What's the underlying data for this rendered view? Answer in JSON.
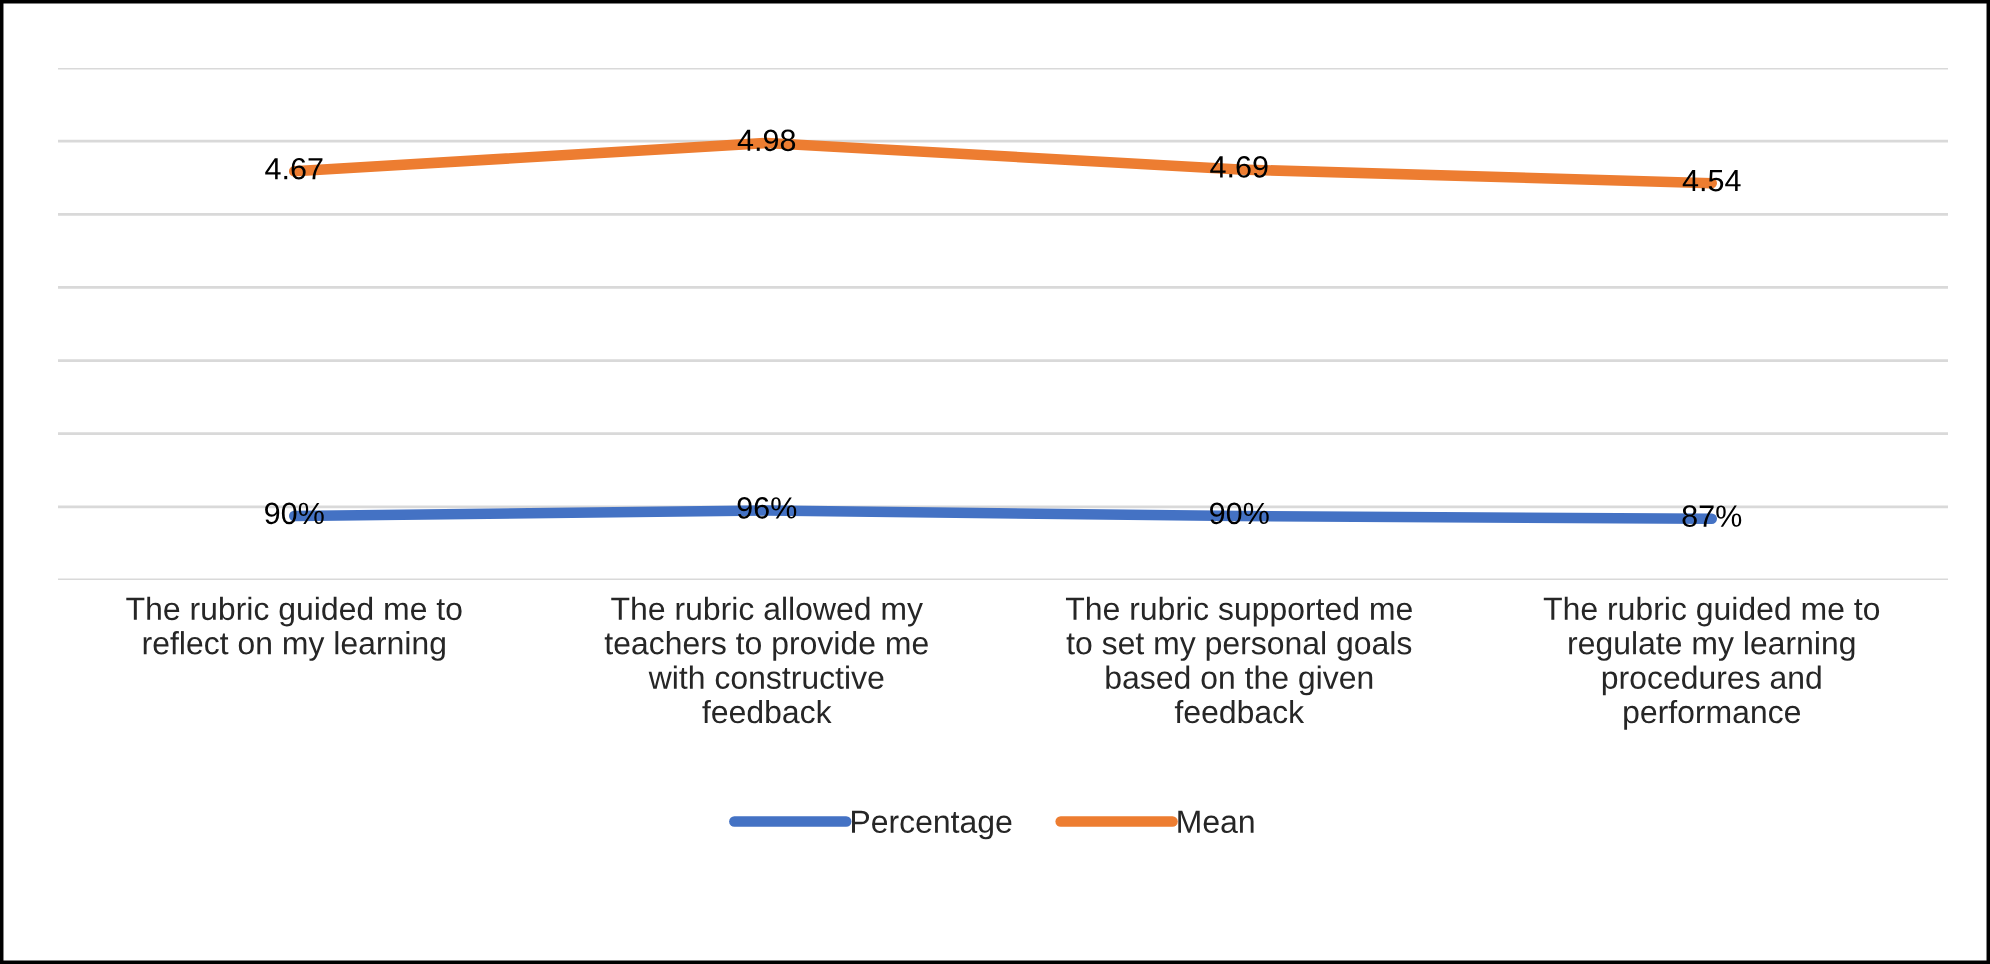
{
  "chart_data": {
    "type": "line",
    "categories": [
      "The rubric guided me to reflect on my learning",
      "The rubric allowed my teachers to provide me with constructive feedback",
      "The rubric supported me to set my personal goals based on the given feedback",
      "The rubric guided me to regulate my learning procedures and performance"
    ],
    "series": [
      {
        "name": "Percentage",
        "color": "#4472c4",
        "values": [
          0.9,
          0.96,
          0.9,
          0.87
        ],
        "value_labels": [
          "90%",
          "96%",
          "90%",
          "87%"
        ]
      },
      {
        "name": "Mean",
        "color": "#ed7d31",
        "values": [
          4.67,
          4.98,
          4.69,
          4.54
        ],
        "value_labels": [
          "4.67",
          "4.98",
          "4.69",
          "4.54"
        ]
      }
    ],
    "yticks": [
      {
        "value": 0.2,
        "label": null
      },
      {
        "value": 1.0,
        "label": null
      },
      {
        "value": 1.8,
        "label": null
      },
      {
        "value": 2.6,
        "label": null
      },
      {
        "value": 3.4,
        "label": null
      },
      {
        "value": 4.2,
        "label": null
      },
      {
        "value": 5.0,
        "label": null
      },
      {
        "value": 5.8,
        "label": null
      }
    ],
    "grid": "y",
    "legend": "bottom",
    "tick_labels": "x",
    "marker": "none",
    "line_style": "solid"
  }
}
